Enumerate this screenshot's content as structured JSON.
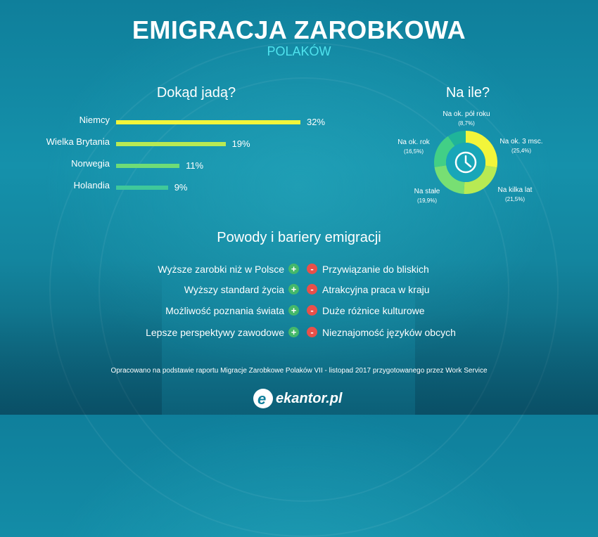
{
  "header": {
    "title": "EMIGRACJA ZAROBKOWA",
    "subtitle": "POLAKÓW"
  },
  "left_heading": "Dokąd jadą?",
  "right_heading": "Na ile?",
  "middle_heading": "Powody i bariery emigracji",
  "chart_data": [
    {
      "type": "bar",
      "orientation": "horizontal",
      "title": "Dokąd jadą?",
      "categories": [
        "Niemcy",
        "Wielka Brytania",
        "Norwegia",
        "Holandia"
      ],
      "values": [
        32,
        19,
        11,
        9
      ],
      "value_labels": [
        "32%",
        "19%",
        "11%",
        "9%"
      ],
      "colors": [
        "#f2f53a",
        "#b8ea53",
        "#6fdc76",
        "#3fc89a"
      ],
      "grid": false
    },
    {
      "type": "pie",
      "style": "donut",
      "title": "Na ile?",
      "slices": [
        {
          "label": "Na ok. 3 msc.",
          "value": 25.4,
          "value_label": "(25,4%)",
          "color": "#f2f53a"
        },
        {
          "label": "Na kilka lat",
          "value": 21.5,
          "value_label": "(21,5%)",
          "color": "#b8ea53"
        },
        {
          "label": "Na stałe",
          "value": 19.9,
          "value_label": "(19,9%)",
          "color": "#78df73"
        },
        {
          "label": "Na ok. rok",
          "value": 16.5,
          "value_label": "(16,5%)",
          "color": "#42cf86"
        },
        {
          "label": "Na ok. pół roku",
          "value": 8.7,
          "value_label": "(8,7%)",
          "color": "#1fb49a"
        }
      ],
      "center_icon": "clock-icon"
    }
  ],
  "reasons": [
    {
      "plus": "Wyższe zarobki niż w Polsce",
      "minus": "Przywiązanie do bliskich"
    },
    {
      "plus": "Wyższy standard życia",
      "minus": "Atrakcyjna praca w kraju"
    },
    {
      "plus": "Możliwość poznania świata",
      "minus": "Duże różnice kulturowe"
    },
    {
      "plus": "Lepsze perspektywy zawodowe",
      "minus": "Nieznajomość języków obcych"
    }
  ],
  "badges": {
    "plus": "+",
    "minus": "-"
  },
  "source": "Opracowano na podstawie raportu Migracje Zarobkowe Polaków VII - listopad 2017 przygotowanego przez Work Service",
  "logo": {
    "letter": "e",
    "text": "ekantor.pl"
  }
}
